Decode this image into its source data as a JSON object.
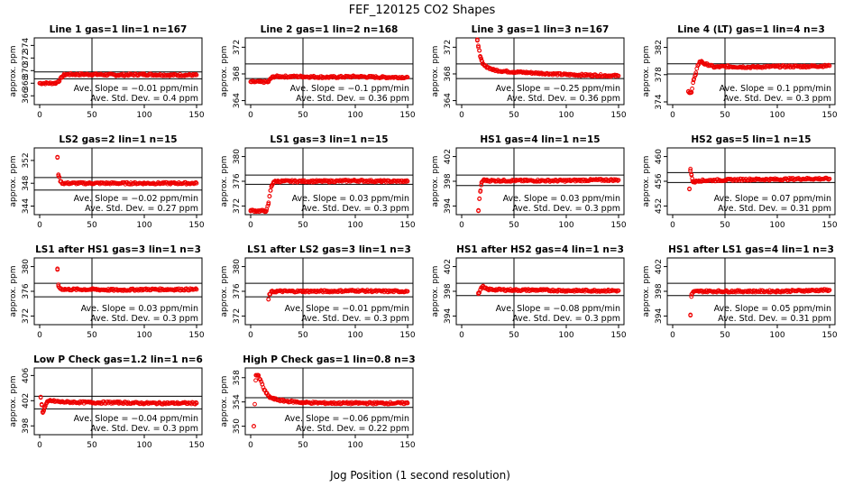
{
  "title": "FEF_120125  CO2 Shapes",
  "xlabel": "Jog Position (1 second resolution)",
  "ylabel": "approx. ppm",
  "point_color": "#ee0000",
  "slope_prefix": "Ave. Slope = ",
  "slope_suffix": " ppm/min",
  "sd_prefix": "Ave. Std. Dev. = ",
  "sd_suffix": " ppm",
  "chart_data": [
    {
      "type": "scatter",
      "title": "Line 1 gas=1 lin=1 n=167",
      "xlim": [
        0,
        150
      ],
      "xticks": [
        0,
        50,
        100,
        150
      ],
      "ylim": [
        364.6,
        375.2
      ],
      "yticks": [
        366,
        368,
        370,
        372,
        374
      ],
      "hlines": [
        369.8,
        368.7
      ],
      "slope": "−0.01",
      "sd": "0.4",
      "points": [
        [
          0,
          368
        ],
        [
          8,
          368
        ],
        [
          15,
          368
        ],
        [
          18,
          368.3
        ],
        [
          21,
          368.9
        ],
        [
          23,
          369.3
        ],
        [
          26,
          369.4
        ],
        [
          35,
          369.4
        ],
        [
          50,
          369.4
        ],
        [
          75,
          369.3
        ],
        [
          100,
          369.4
        ],
        [
          125,
          369.3
        ],
        [
          150,
          369.3
        ]
      ]
    },
    {
      "type": "scatter",
      "title": "Line 2 gas=1 lin=2 n=168",
      "xlim": [
        0,
        150
      ],
      "xticks": [
        0,
        50,
        100,
        150
      ],
      "ylim": [
        363.4,
        373.4
      ],
      "yticks": [
        364,
        368,
        372
      ],
      "hlines": [
        369.5,
        367.3
      ],
      "slope": "−0.1",
      "sd": "0.36",
      "points": [
        [
          0,
          366.8
        ],
        [
          10,
          366.8
        ],
        [
          17,
          366.8
        ],
        [
          19,
          367.3
        ],
        [
          22,
          367.6
        ],
        [
          30,
          367.6
        ],
        [
          50,
          367.6
        ],
        [
          75,
          367.5
        ],
        [
          100,
          367.6
        ],
        [
          125,
          367.5
        ],
        [
          150,
          367.5
        ]
      ]
    },
    {
      "type": "scatter",
      "title": "Line 3 gas=1 lin=3 n=167",
      "xlim": [
        0,
        150
      ],
      "xticks": [
        0,
        50,
        100,
        150
      ],
      "ylim": [
        363.4,
        373.4
      ],
      "yticks": [
        364,
        368,
        372
      ],
      "hlines": [
        369.5,
        367.3
      ],
      "slope": "−0.25",
      "sd": "0.36",
      "points": [
        [
          15,
          373
        ],
        [
          16,
          372
        ],
        [
          17,
          371.5
        ],
        [
          18,
          370.5
        ],
        [
          19,
          370
        ],
        [
          20,
          369.5
        ],
        [
          22,
          369.2
        ],
        [
          25,
          369
        ],
        [
          30,
          368.6
        ],
        [
          40,
          368.4
        ],
        [
          50,
          368.3
        ],
        [
          75,
          368.1
        ],
        [
          100,
          367.9
        ],
        [
          125,
          367.8
        ],
        [
          150,
          367.7
        ]
      ]
    },
    {
      "type": "scatter",
      "title": "Line 4 (LT) gas=1 lin=4 n=3",
      "xlim": [
        0,
        150
      ],
      "xticks": [
        0,
        50,
        100,
        150
      ],
      "ylim": [
        373.6,
        383.4
      ],
      "yticks": [
        374,
        378,
        382
      ],
      "hlines": [
        379.6,
        378.1
      ],
      "slope": "0.1",
      "sd": "0.3",
      "points": [
        [
          15,
          375.5
        ],
        [
          18,
          375.4
        ],
        [
          20,
          377.2
        ],
        [
          22,
          378
        ],
        [
          24,
          379.4
        ],
        [
          26,
          379.9
        ],
        [
          28,
          379.9
        ],
        [
          30,
          379.6
        ],
        [
          35,
          379.4
        ],
        [
          40,
          379.1
        ],
        [
          50,
          379.2
        ],
        [
          75,
          379.1
        ],
        [
          100,
          379.2
        ],
        [
          125,
          379.2
        ],
        [
          150,
          379.3
        ]
      ]
    },
    {
      "type": "scatter",
      "title": "LS2 gas=2 lin=1 n=15",
      "xlim": [
        0,
        150
      ],
      "xticks": [
        0,
        50,
        100,
        150
      ],
      "ylim": [
        342.5,
        354.2
      ],
      "yticks": [
        344,
        348,
        352
      ],
      "hlines": [
        349,
        346.8
      ],
      "slope": "−0.02",
      "sd": "0.27",
      "points": [
        [
          17,
          352.6
        ],
        [
          18,
          349.3
        ],
        [
          20,
          348.3
        ],
        [
          22,
          348
        ],
        [
          30,
          348
        ],
        [
          50,
          348
        ],
        [
          75,
          348
        ],
        [
          100,
          348
        ],
        [
          125,
          348
        ],
        [
          150,
          348
        ]
      ]
    },
    {
      "type": "scatter",
      "title": "LS1 gas=3 lin=1 n=15",
      "xlim": [
        0,
        150
      ],
      "xticks": [
        0,
        50,
        100,
        150
      ],
      "ylim": [
        370.6,
        381.4
      ],
      "yticks": [
        372,
        376,
        380
      ],
      "hlines": [
        377,
        375.5
      ],
      "slope": "0.03",
      "sd": "0.3",
      "points": [
        [
          0,
          371.3
        ],
        [
          5,
          371.2
        ],
        [
          10,
          371.2
        ],
        [
          15,
          371.2
        ],
        [
          17,
          372.3
        ],
        [
          18,
          373.6
        ],
        [
          19,
          374.5
        ],
        [
          20,
          375.3
        ],
        [
          22,
          375.9
        ],
        [
          25,
          376
        ],
        [
          50,
          376
        ],
        [
          75,
          376
        ],
        [
          100,
          376.1
        ],
        [
          125,
          376
        ],
        [
          150,
          376
        ]
      ]
    },
    {
      "type": "scatter",
      "title": "HS1 gas=4 lin=1 n=15",
      "xlim": [
        0,
        150
      ],
      "xticks": [
        0,
        50,
        100,
        150
      ],
      "ylim": [
        392.6,
        403.4
      ],
      "yticks": [
        394,
        398,
        402
      ],
      "hlines": [
        399,
        397.3
      ],
      "slope": "0.03",
      "sd": "0.3",
      "points": [
        [
          16,
          393.3
        ],
        [
          17,
          395.2
        ],
        [
          18,
          396.5
        ],
        [
          19,
          397.8
        ],
        [
          21,
          398.2
        ],
        [
          25,
          398.1
        ],
        [
          50,
          398.1
        ],
        [
          75,
          398.1
        ],
        [
          100,
          398.1
        ],
        [
          125,
          398.2
        ],
        [
          150,
          398.2
        ]
      ]
    },
    {
      "type": "scatter",
      "title": "HS2 gas=5 lin=1 n=15",
      "xlim": [
        0,
        150
      ],
      "xticks": [
        0,
        50,
        100,
        150
      ],
      "ylim": [
        450.6,
        461.4
      ],
      "yticks": [
        452,
        456,
        460
      ],
      "hlines": [
        457.4,
        455.8
      ],
      "slope": "0.07",
      "sd": "0.31",
      "points": [
        [
          16,
          454.8
        ],
        [
          17,
          458
        ],
        [
          18,
          457
        ],
        [
          19,
          456
        ],
        [
          21,
          455.9
        ],
        [
          25,
          456.1
        ],
        [
          50,
          456.2
        ],
        [
          75,
          456.3
        ],
        [
          100,
          456.3
        ],
        [
          125,
          456.4
        ],
        [
          150,
          456.4
        ]
      ]
    },
    {
      "type": "scatter",
      "title": "LS1 after HS1 gas=3 lin=1 n=3",
      "xlim": [
        0,
        150
      ],
      "xticks": [
        0,
        50,
        100,
        150
      ],
      "ylim": [
        370.6,
        381.4
      ],
      "yticks": [
        372,
        376,
        380
      ],
      "hlines": [
        377.3,
        375.1
      ],
      "slope": "0.03",
      "sd": "0.3",
      "points": [
        [
          17,
          379.5
        ],
        [
          18,
          376.8
        ],
        [
          20,
          376.4
        ],
        [
          25,
          376.3
        ],
        [
          50,
          376.3
        ],
        [
          75,
          376.2
        ],
        [
          100,
          376.3
        ],
        [
          125,
          376.3
        ],
        [
          150,
          376.3
        ]
      ]
    },
    {
      "type": "scatter",
      "title": "LS1 after LS2 gas=3 lin=1 n=3",
      "xlim": [
        0,
        150
      ],
      "xticks": [
        0,
        50,
        100,
        150
      ],
      "ylim": [
        370.6,
        381.4
      ],
      "yticks": [
        372,
        376,
        380
      ],
      "hlines": [
        377.3,
        375.1
      ],
      "slope": "−0.01",
      "sd": "0.3",
      "points": [
        [
          17,
          374.7
        ],
        [
          18,
          375.5
        ],
        [
          20,
          375.9
        ],
        [
          25,
          376
        ],
        [
          50,
          376
        ],
        [
          75,
          376
        ],
        [
          100,
          376.1
        ],
        [
          125,
          376
        ],
        [
          150,
          376
        ]
      ]
    },
    {
      "type": "scatter",
      "title": "HS1 after HS2 gas=4 lin=1 n=3",
      "xlim": [
        0,
        150
      ],
      "xticks": [
        0,
        50,
        100,
        150
      ],
      "ylim": [
        392.6,
        403.4
      ],
      "yticks": [
        394,
        398,
        402
      ],
      "hlines": [
        399.3,
        397.3
      ],
      "slope": "−0.08",
      "sd": "0.3",
      "points": [
        [
          16,
          397.6
        ],
        [
          18,
          398.3
        ],
        [
          20,
          398.8
        ],
        [
          22,
          398.5
        ],
        [
          25,
          398.3
        ],
        [
          50,
          398.2
        ],
        [
          75,
          398.2
        ],
        [
          100,
          398.1
        ],
        [
          125,
          398.1
        ],
        [
          150,
          398.1
        ]
      ]
    },
    {
      "type": "scatter",
      "title": "HS1 after LS1 gas=4 lin=1 n=3",
      "xlim": [
        0,
        150
      ],
      "xticks": [
        0,
        50,
        100,
        150
      ],
      "ylim": [
        392.6,
        403.4
      ],
      "yticks": [
        394,
        398,
        402
      ],
      "hlines": [
        399.3,
        397.3
      ],
      "slope": "0.05",
      "sd": "0.31",
      "points": [
        [
          17,
          394.1
        ],
        [
          18,
          397.5
        ],
        [
          20,
          397.9
        ],
        [
          25,
          398
        ],
        [
          50,
          398
        ],
        [
          75,
          398
        ],
        [
          100,
          398
        ],
        [
          125,
          398.1
        ],
        [
          150,
          398.2
        ]
      ]
    },
    {
      "type": "scatter",
      "title": "Low P Check gas=1.2 lin=1 n=6",
      "xlim": [
        0,
        150
      ],
      "xticks": [
        0,
        50,
        100,
        150
      ],
      "ylim": [
        396.6,
        407.2
      ],
      "yticks": [
        398,
        402,
        406
      ],
      "hlines": [
        402.7,
        400.7
      ],
      "slope": "−0.04",
      "sd": "0.3",
      "points": [
        [
          1,
          402.5
        ],
        [
          2,
          401.3
        ],
        [
          3,
          400.1
        ],
        [
          4,
          400.5
        ],
        [
          5,
          401
        ],
        [
          7,
          401.7
        ],
        [
          10,
          402
        ],
        [
          20,
          401.8
        ],
        [
          50,
          401.7
        ],
        [
          75,
          401.7
        ],
        [
          100,
          401.6
        ],
        [
          125,
          401.6
        ],
        [
          150,
          401.6
        ]
      ]
    },
    {
      "type": "scatter",
      "title": "High P Check gas=1 lin=0.8 n=3",
      "xlim": [
        0,
        150
      ],
      "xticks": [
        0,
        50,
        100,
        150
      ],
      "ylim": [
        348.6,
        359.6
      ],
      "yticks": [
        350,
        354,
        358
      ],
      "hlines": [
        354.7,
        353.1
      ],
      "slope": "−0.06",
      "sd": "0.22",
      "points": [
        [
          3,
          350
        ],
        [
          5,
          358.4
        ],
        [
          7,
          358.4
        ],
        [
          9,
          357.7
        ],
        [
          11,
          356.9
        ],
        [
          13,
          356
        ],
        [
          15,
          355.4
        ],
        [
          18,
          354.8
        ],
        [
          22,
          354.5
        ],
        [
          30,
          354.2
        ],
        [
          50,
          353.9
        ],
        [
          75,
          353.8
        ],
        [
          100,
          353.8
        ],
        [
          125,
          353.8
        ],
        [
          150,
          353.8
        ]
      ]
    }
  ]
}
